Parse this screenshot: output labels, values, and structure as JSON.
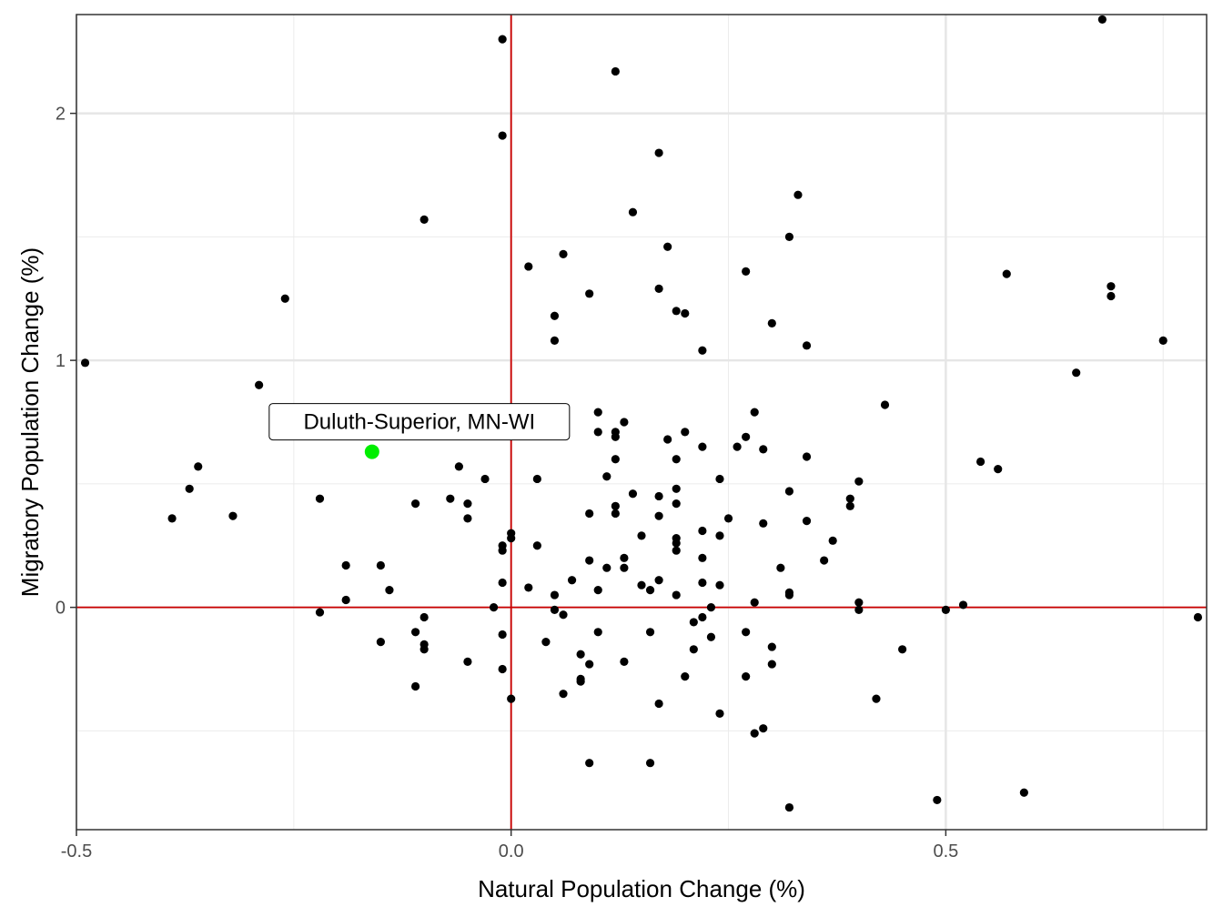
{
  "chart_data": {
    "type": "scatter",
    "xlabel": "Natural Population Change (%)",
    "ylabel": "Migratory Population Change (%)",
    "xlim": [
      -0.5,
      0.8
    ],
    "ylim": [
      -0.9,
      2.4
    ],
    "x_ticks": [
      -0.5,
      0.0,
      0.5
    ],
    "x_tick_labels": [
      "-0.5",
      "0.0",
      "0.5"
    ],
    "y_ticks": [
      0,
      1,
      2
    ],
    "y_tick_labels": [
      "0",
      "1",
      "2"
    ],
    "grid": true,
    "reference_lines": {
      "x": 0,
      "y": 0,
      "color": "#cc0000"
    },
    "point_color": "#000000",
    "highlight": {
      "label": "Duluth-Superior, MN-WI",
      "x": -0.16,
      "y": 0.63,
      "color": "#00ee00"
    },
    "points": [
      [
        -0.49,
        0.99
      ],
      [
        -0.39,
        0.36
      ],
      [
        -0.37,
        0.48
      ],
      [
        -0.36,
        0.57
      ],
      [
        -0.32,
        0.37
      ],
      [
        -0.29,
        0.9
      ],
      [
        -0.26,
        1.25
      ],
      [
        -0.22,
        0.44
      ],
      [
        -0.22,
        -0.02
      ],
      [
        -0.19,
        0.17
      ],
      [
        -0.19,
        0.03
      ],
      [
        -0.15,
        0.17
      ],
      [
        -0.15,
        -0.14
      ],
      [
        -0.14,
        0.07
      ],
      [
        -0.11,
        0.42
      ],
      [
        -0.11,
        -0.1
      ],
      [
        -0.11,
        -0.32
      ],
      [
        -0.1,
        1.57
      ],
      [
        -0.1,
        -0.04
      ],
      [
        -0.1,
        -0.15
      ],
      [
        -0.1,
        -0.17
      ],
      [
        -0.07,
        0.44
      ],
      [
        -0.06,
        0.57
      ],
      [
        -0.05,
        0.42
      ],
      [
        -0.05,
        0.36
      ],
      [
        -0.05,
        -0.22
      ],
      [
        -0.03,
        0.52
      ],
      [
        -0.02,
        0.0
      ],
      [
        -0.01,
        2.3
      ],
      [
        -0.01,
        1.91
      ],
      [
        -0.01,
        0.25
      ],
      [
        -0.01,
        0.23
      ],
      [
        -0.01,
        0.1
      ],
      [
        -0.01,
        -0.11
      ],
      [
        -0.01,
        -0.25
      ],
      [
        0.0,
        0.3
      ],
      [
        0.0,
        0.28
      ],
      [
        0.0,
        -0.37
      ],
      [
        0.02,
        1.38
      ],
      [
        0.02,
        0.08
      ],
      [
        0.03,
        0.52
      ],
      [
        0.03,
        0.25
      ],
      [
        0.04,
        -0.14
      ],
      [
        0.05,
        1.18
      ],
      [
        0.05,
        1.08
      ],
      [
        0.05,
        0.05
      ],
      [
        0.05,
        -0.01
      ],
      [
        0.06,
        1.43
      ],
      [
        0.06,
        -0.03
      ],
      [
        0.06,
        -0.35
      ],
      [
        0.07,
        0.11
      ],
      [
        0.08,
        -0.19
      ],
      [
        0.08,
        -0.3
      ],
      [
        0.08,
        -0.29
      ],
      [
        0.09,
        1.27
      ],
      [
        0.09,
        0.38
      ],
      [
        0.09,
        0.19
      ],
      [
        0.09,
        -0.23
      ],
      [
        0.09,
        -0.63
      ],
      [
        0.1,
        0.79
      ],
      [
        0.1,
        0.71
      ],
      [
        0.1,
        0.07
      ],
      [
        0.1,
        -0.1
      ],
      [
        0.11,
        0.53
      ],
      [
        0.11,
        0.16
      ],
      [
        0.12,
        2.17
      ],
      [
        0.12,
        0.71
      ],
      [
        0.12,
        0.69
      ],
      [
        0.12,
        0.6
      ],
      [
        0.12,
        0.41
      ],
      [
        0.12,
        0.38
      ],
      [
        0.13,
        0.75
      ],
      [
        0.13,
        0.2
      ],
      [
        0.13,
        0.16
      ],
      [
        0.13,
        -0.22
      ],
      [
        0.14,
        1.6
      ],
      [
        0.14,
        0.46
      ],
      [
        0.15,
        0.29
      ],
      [
        0.15,
        0.09
      ],
      [
        0.16,
        0.07
      ],
      [
        0.16,
        -0.1
      ],
      [
        0.16,
        -0.63
      ],
      [
        0.17,
        1.84
      ],
      [
        0.17,
        1.29
      ],
      [
        0.17,
        0.45
      ],
      [
        0.17,
        0.37
      ],
      [
        0.17,
        0.11
      ],
      [
        0.17,
        -0.39
      ],
      [
        0.18,
        1.46
      ],
      [
        0.18,
        0.68
      ],
      [
        0.19,
        1.2
      ],
      [
        0.19,
        0.6
      ],
      [
        0.19,
        0.48
      ],
      [
        0.19,
        0.42
      ],
      [
        0.19,
        0.28
      ],
      [
        0.19,
        0.26
      ],
      [
        0.19,
        0.23
      ],
      [
        0.19,
        0.05
      ],
      [
        0.2,
        1.19
      ],
      [
        0.2,
        0.71
      ],
      [
        0.2,
        -0.28
      ],
      [
        0.21,
        -0.06
      ],
      [
        0.21,
        -0.17
      ],
      [
        0.22,
        1.04
      ],
      [
        0.22,
        0.65
      ],
      [
        0.22,
        0.31
      ],
      [
        0.22,
        0.2
      ],
      [
        0.22,
        0.1
      ],
      [
        0.22,
        -0.04
      ],
      [
        0.23,
        0.0
      ],
      [
        0.23,
        -0.12
      ],
      [
        0.24,
        0.52
      ],
      [
        0.24,
        0.29
      ],
      [
        0.24,
        0.09
      ],
      [
        0.24,
        -0.43
      ],
      [
        0.25,
        0.36
      ],
      [
        0.26,
        0.65
      ],
      [
        0.27,
        1.36
      ],
      [
        0.27,
        0.69
      ],
      [
        0.27,
        -0.1
      ],
      [
        0.27,
        -0.28
      ],
      [
        0.28,
        0.79
      ],
      [
        0.28,
        0.02
      ],
      [
        0.28,
        -0.51
      ],
      [
        0.29,
        0.64
      ],
      [
        0.29,
        0.34
      ],
      [
        0.29,
        -0.49
      ],
      [
        0.3,
        1.15
      ],
      [
        0.3,
        -0.16
      ],
      [
        0.3,
        -0.23
      ],
      [
        0.31,
        0.16
      ],
      [
        0.32,
        1.5
      ],
      [
        0.32,
        0.47
      ],
      [
        0.32,
        0.06
      ],
      [
        0.32,
        0.05
      ],
      [
        0.32,
        -0.81
      ],
      [
        0.33,
        1.67
      ],
      [
        0.34,
        1.06
      ],
      [
        0.34,
        0.61
      ],
      [
        0.34,
        0.35
      ],
      [
        0.36,
        0.19
      ],
      [
        0.37,
        0.27
      ],
      [
        0.39,
        0.44
      ],
      [
        0.39,
        0.41
      ],
      [
        0.4,
        0.51
      ],
      [
        0.4,
        0.02
      ],
      [
        0.4,
        -0.01
      ],
      [
        0.42,
        -0.37
      ],
      [
        0.43,
        0.82
      ],
      [
        0.45,
        -0.17
      ],
      [
        0.49,
        -0.78
      ],
      [
        0.5,
        -0.01
      ],
      [
        0.52,
        0.01
      ],
      [
        0.54,
        0.59
      ],
      [
        0.56,
        0.56
      ],
      [
        0.57,
        1.35
      ],
      [
        0.59,
        -0.75
      ],
      [
        0.65,
        0.95
      ],
      [
        0.68,
        2.38
      ],
      [
        0.69,
        1.3
      ],
      [
        0.69,
        1.26
      ],
      [
        0.75,
        1.08
      ],
      [
        0.79,
        -0.04
      ]
    ]
  }
}
